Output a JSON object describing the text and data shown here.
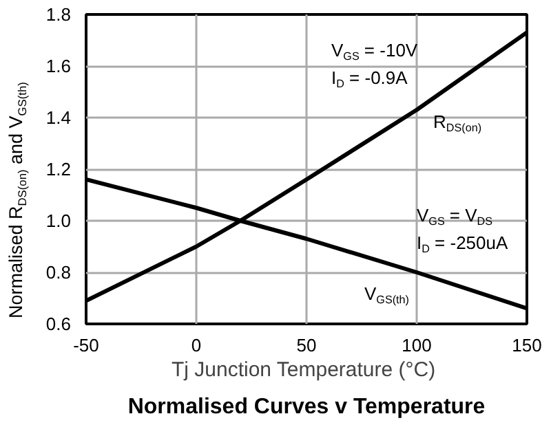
{
  "chart_data": {
    "type": "line",
    "title": "Normalised Curves v Temperature",
    "xlabel": "Tj  Junction Temperature (°C)",
    "ylabel": "Normalised R$_{DS(on)}$ and V$_{GS(th)}$",
    "x": [
      -50,
      0,
      20,
      50,
      100,
      150
    ],
    "series": [
      {
        "color": "#000000",
        "values": [
          0.69,
          0.9,
          1.0,
          1.16,
          1.43,
          1.73
        ]
      },
      {
        "color": "#000000",
        "values": [
          1.16,
          1.05,
          1.0,
          0.93,
          0.8,
          0.66
        ]
      }
    ],
    "xlim": [
      -50,
      150
    ],
    "xticks": [
      -50,
      0,
      50,
      100,
      150
    ],
    "ylim": [
      0.6,
      1.8
    ],
    "yticks": [
      {
        "value": 0.6,
        "label": "0.6"
      },
      {
        "value": 0.8,
        "label": "0.8"
      },
      {
        "value": 1.0,
        "label": "1.0"
      },
      {
        "value": 1.2,
        "label": "1.2"
      },
      {
        "value": 1.4,
        "label": "1.4"
      },
      {
        "value": 1.6,
        "label": "1.6"
      },
      {
        "value": 1.8,
        "label": "1.8"
      }
    ],
    "grid": true,
    "marker": "none",
    "line_style": "solid",
    "annotations": [
      "V$_{GS}$ = -10V",
      "I$_{D}$ = -0.9A",
      "R$_{DS(on)}$",
      "V$_{GS}$ = V$_{DS}$",
      "I$_{D}$ = -250uA",
      "V$_{GS(th)}$"
    ]
  }
}
